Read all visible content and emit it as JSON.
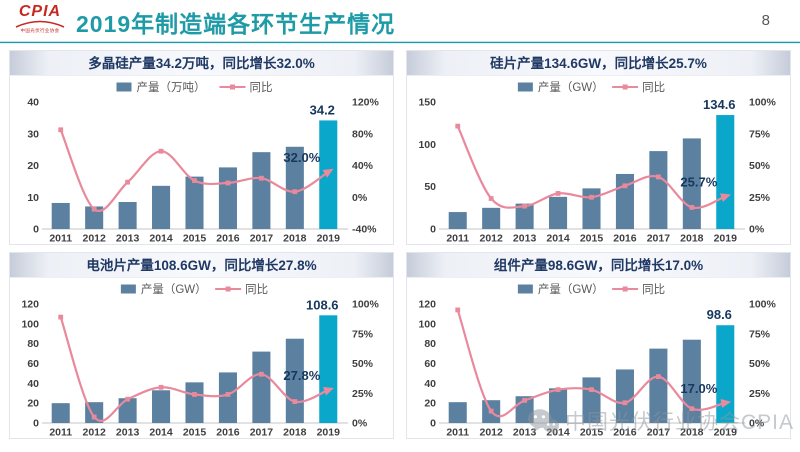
{
  "header": {
    "logo": {
      "text": "CPIA",
      "subtext": "中国光伏行业协会"
    },
    "title": "2019年制造端各环节生产情况",
    "page_number": "8"
  },
  "watermark": {
    "icon": "wechat-icon",
    "text": "中国光伏行业协会CPIA"
  },
  "colors": {
    "bar": "#5B80A0",
    "bar_highlight": "#0BA7CB",
    "line": "#E9899C",
    "data_label": "#17375E",
    "axis_text": "#404040",
    "legend_text": "#595959",
    "panel_title_text": "#1F3864",
    "header_title": "#1E9BA6",
    "logo_red": "#C42A21",
    "divider": "#2098A8",
    "footer_green": "#12C18E",
    "footer_blue": "#2F8FB5"
  },
  "chart_data": [
    {
      "id": "polysilicon",
      "type": "bar+line",
      "title": "多晶硅产量34.2万吨，同比增长32.0%",
      "legend": [
        "产量（万吨）",
        "同比"
      ],
      "categories": [
        "2011",
        "2012",
        "2013",
        "2014",
        "2015",
        "2016",
        "2017",
        "2018",
        "2019"
      ],
      "bars": [
        8.2,
        7.1,
        8.5,
        13.6,
        16.5,
        19.4,
        24.2,
        25.9,
        34.2
      ],
      "yoy_pct": [
        85,
        -15,
        19,
        58,
        21,
        18,
        24,
        7,
        32
      ],
      "left_axis": {
        "ticks": [
          0,
          10,
          20,
          30,
          40
        ],
        "max": 40
      },
      "right_axis": {
        "labels": [
          "-40%",
          "0%",
          "40%",
          "80%",
          "120%"
        ],
        "min": -40,
        "max": 120
      },
      "bar_label": "34.2",
      "line_label": "32.0%"
    },
    {
      "id": "wafer",
      "type": "bar+line",
      "title": "硅片产量134.6GW，同比增长25.7%",
      "legend": [
        "产量（GW）",
        "同比"
      ],
      "categories": [
        "2011",
        "2012",
        "2013",
        "2014",
        "2015",
        "2016",
        "2017",
        "2018",
        "2019"
      ],
      "bars": [
        20,
        25,
        30,
        38,
        48,
        65,
        92,
        107,
        134.6
      ],
      "yoy_pct": [
        81,
        24,
        18,
        28,
        25,
        34,
        41,
        17,
        25.7
      ],
      "left_axis": {
        "ticks": [
          0,
          50,
          100,
          150
        ],
        "max": 150
      },
      "right_axis": {
        "labels": [
          "0%",
          "25%",
          "50%",
          "75%",
          "100%"
        ],
        "min": 0,
        "max": 100
      },
      "bar_label": "134.6",
      "line_label": "25.7%"
    },
    {
      "id": "cell",
      "type": "bar+line",
      "title": "电池片产量108.6GW，同比增长27.8%",
      "legend": [
        "产量（GW）",
        "同比"
      ],
      "categories": [
        "2011",
        "2012",
        "2013",
        "2014",
        "2015",
        "2016",
        "2017",
        "2018",
        "2019"
      ],
      "bars": [
        20,
        21,
        25,
        33,
        41,
        51,
        72,
        85,
        108.6
      ],
      "yoy_pct": [
        89,
        5,
        20,
        30,
        24,
        24,
        41,
        18,
        27.8
      ],
      "left_axis": {
        "ticks": [
          0,
          20,
          40,
          60,
          80,
          100,
          120
        ],
        "max": 120
      },
      "right_axis": {
        "labels": [
          "0%",
          "25%",
          "50%",
          "75%",
          "100%"
        ],
        "min": 0,
        "max": 100
      },
      "bar_label": "108.6",
      "line_label": "27.8%"
    },
    {
      "id": "module",
      "type": "bar+line",
      "title": "组件产量98.6GW，同比增长17.0%",
      "legend": [
        "产量（GW）",
        "同比"
      ],
      "categories": [
        "2011",
        "2012",
        "2013",
        "2014",
        "2015",
        "2016",
        "2017",
        "2018",
        "2019"
      ],
      "bars": [
        21,
        23,
        27,
        35,
        46,
        54,
        75,
        84,
        98.6
      ],
      "yoy_pct": [
        95,
        10,
        19,
        28,
        28,
        17,
        39,
        12,
        17.0
      ],
      "left_axis": {
        "ticks": [
          0,
          20,
          40,
          60,
          80,
          100,
          120
        ],
        "max": 120
      },
      "right_axis": {
        "labels": [
          "0%",
          "25%",
          "50%",
          "75%",
          "100%"
        ],
        "min": 0,
        "max": 100
      },
      "bar_label": "98.6",
      "line_label": "17.0%"
    }
  ]
}
